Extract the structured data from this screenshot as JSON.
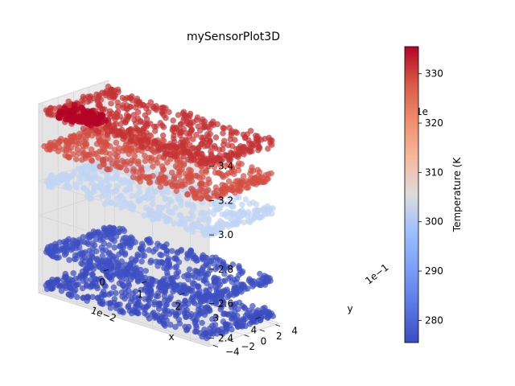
{
  "chart_data": {
    "type": "scatter3d",
    "title": "mySensorPlot3D",
    "xlabel": "x",
    "ylabel": "y",
    "zlabel": "",
    "x_ticks": [
      "0",
      "1",
      "2",
      "3",
      "4"
    ],
    "x_offset_label": "1e−2",
    "y_ticks": [
      "−4",
      "−2",
      "0",
      "2",
      "4"
    ],
    "y_offset_label": "1e−1",
    "z_ticks": [
      "2.4",
      "2.6",
      "2.8",
      "3.0",
      "3.2",
      "3.4"
    ],
    "z_offset_label": "1e",
    "xlim": [
      0,
      4.5
    ],
    "ylim": [
      -4.5,
      4.5
    ],
    "zlim": [
      2.35,
      3.45
    ],
    "grid": true,
    "colormap": "coolwarm",
    "colorbar": {
      "label": "Temperature (K",
      "ticks": [
        "280",
        "290",
        "300",
        "310",
        "320",
        "330"
      ],
      "range": [
        275.5,
        335.5
      ]
    },
    "layers": [
      {
        "z": 2.4,
        "temperature": 277,
        "color": "#3b4cc0"
      },
      {
        "z": 2.6,
        "temperature": 278,
        "color": "#3d50c3"
      },
      {
        "z": 3.0,
        "temperature": 298,
        "color": "#c0d4f5"
      },
      {
        "z": 3.2,
        "temperature": 328,
        "color": "#d44e41"
      },
      {
        "z": 3.4,
        "temperature": 333,
        "color": "#c53334"
      }
    ],
    "hotspot": {
      "x_range": [
        0.3,
        1.2
      ],
      "y_range": [
        -4.0,
        -1.2
      ],
      "z": 3.4,
      "temperature": 335,
      "color": "#b40426"
    }
  }
}
